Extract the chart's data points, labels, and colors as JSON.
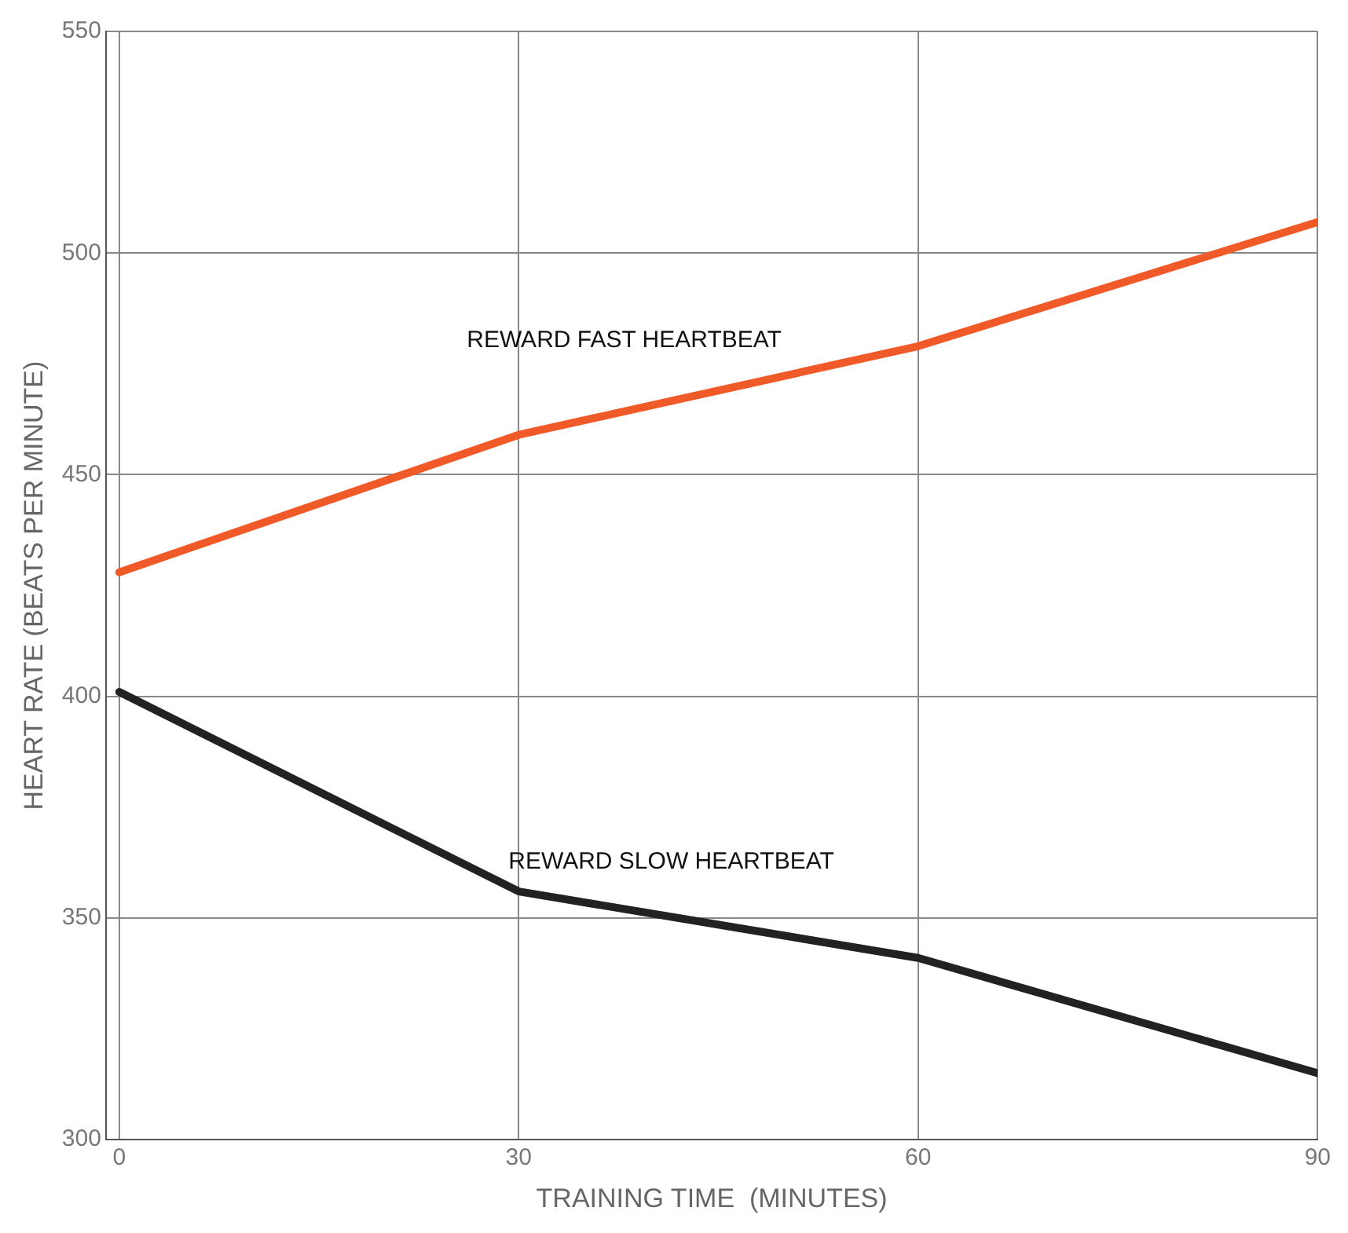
{
  "chart_data": {
    "type": "line",
    "xlabel": "TRAINING TIME  (MINUTES)",
    "ylabel": "HEART RATE (BEATS PER MINUTE)",
    "x": [
      0,
      30,
      60,
      90
    ],
    "series": [
      {
        "name": "REWARD FAST HEARTBEAT",
        "color": "#f05a28",
        "values": [
          428,
          459,
          479,
          507
        ]
      },
      {
        "name": "REWARD SLOW HEARTBEAT",
        "color": "#222222",
        "values": [
          401,
          356,
          341,
          315
        ]
      }
    ],
    "xlim": [
      -1,
      90
    ],
    "xticks": [
      0,
      30,
      60,
      90
    ],
    "ylim": [
      300,
      550
    ],
    "yticks": [
      300,
      350,
      400,
      450,
      500,
      550
    ],
    "grid": true,
    "legend": false,
    "marker": "none",
    "line_style": "solid"
  }
}
